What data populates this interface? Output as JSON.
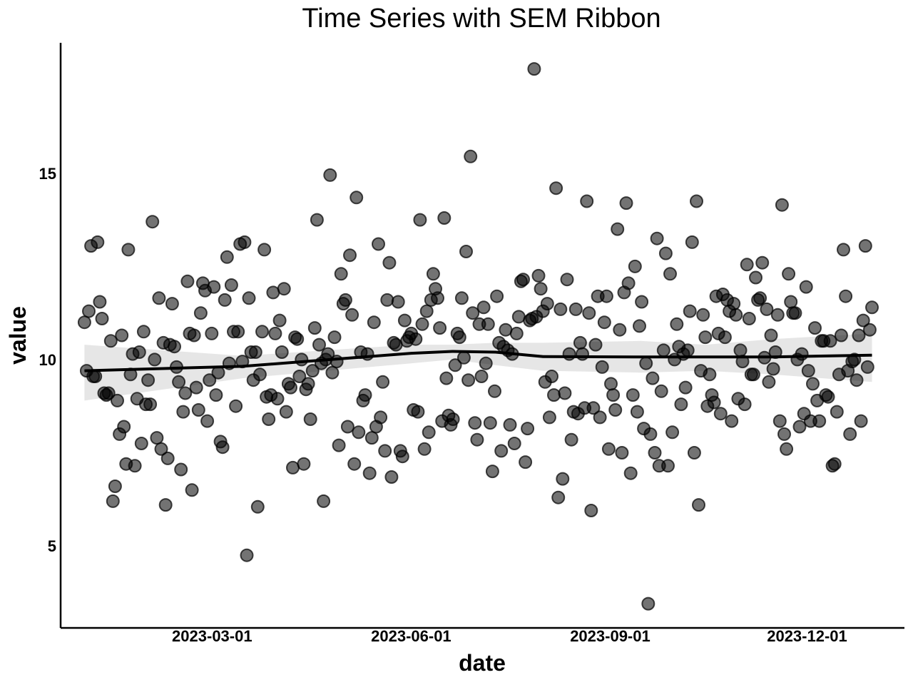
{
  "chart_data": {
    "type": "scatter",
    "title": "Time Series with SEM Ribbon",
    "xlabel": "date",
    "ylabel": "value",
    "x_range": [
      "2023-01-01",
      "2023-12-31"
    ],
    "xlim": [
      "2022-12-21",
      "2024-01-15"
    ],
    "ylim": [
      2.8,
      18.5
    ],
    "x_ticks": [
      "2023-03-01",
      "2023-06-01",
      "2023-09-01",
      "2023-12-01"
    ],
    "y_ticks": [
      5,
      10,
      15
    ],
    "grid": false,
    "point_color": "#000000",
    "point_opacity": 0.55,
    "line_color": "#000000",
    "ribbon_color": "#e6e6e6",
    "values": [
      11.0,
      9.7,
      11.3,
      13.05,
      9.55,
      9.55,
      13.15,
      11.55,
      11.1,
      9.1,
      9.05,
      9.1,
      10.5,
      6.2,
      6.6,
      8.9,
      8.0,
      10.65,
      8.2,
      7.2,
      12.95,
      9.6,
      10.15,
      7.15,
      8.95,
      10.2,
      7.75,
      10.75,
      8.8,
      9.45,
      8.8,
      13.7,
      10.0,
      7.9,
      11.65,
      7.6,
      10.45,
      6.1,
      7.35,
      10.4,
      11.5,
      10.35,
      9.8,
      9.4,
      7.05,
      8.6,
      9.1,
      12.1,
      10.7,
      6.5,
      10.65,
      9.25,
      8.65,
      11.25,
      12.05,
      11.85,
      8.35,
      9.45,
      10.7,
      11.95,
      9.05,
      9.65,
      7.8,
      7.65,
      11.6,
      12.75,
      9.9,
      12.0,
      10.75,
      8.75,
      10.75,
      13.1,
      9.95,
      13.15,
      4.75,
      11.65,
      10.2,
      9.45,
      10.2,
      6.05,
      9.6,
      10.75,
      12.95,
      9.0,
      8.4,
      9.05,
      11.8,
      10.7,
      8.95,
      11.05,
      10.2,
      11.9,
      8.6,
      9.35,
      9.25,
      7.1,
      10.6,
      10.55,
      9.55,
      10.0,
      7.2,
      9.2,
      9.35,
      8.4,
      9.7,
      10.85,
      13.75,
      10.4,
      9.9,
      6.2,
      10.0,
      10.15,
      14.95,
      9.65,
      10.6,
      9.95,
      7.7,
      12.3,
      11.5,
      11.6,
      8.2,
      12.8,
      11.2,
      7.2,
      14.35,
      8.05,
      10.2,
      8.9,
      9.05,
      10.15,
      6.95,
      7.9,
      11.0,
      8.2,
      13.1,
      8.45,
      9.4,
      7.55,
      11.6,
      12.6,
      6.85,
      10.45,
      10.4,
      11.55,
      7.55,
      7.4,
      11.05,
      10.5,
      10.6,
      10.7,
      8.65,
      10.55,
      8.6,
      13.75,
      10.95,
      7.6,
      11.3,
      8.05,
      11.6,
      12.3,
      11.9,
      11.65,
      10.85,
      8.35,
      13.8,
      9.5,
      8.5,
      8.25,
      8.4,
      9.85,
      10.7,
      10.6,
      11.65,
      10.05,
      12.9,
      9.45,
      15.45,
      11.25,
      8.3,
      7.85,
      10.95,
      9.55,
      11.4,
      9.9,
      10.95,
      8.3,
      7.0,
      9.15,
      11.7,
      10.45,
      7.55,
      10.35,
      10.8,
      10.25,
      8.25,
      10.15,
      7.75,
      10.7,
      11.15,
      12.1,
      12.15,
      7.25,
      8.15,
      11.05,
      11.1,
      17.8,
      11.15,
      12.25,
      11.9,
      11.3,
      9.4,
      11.5,
      8.45,
      9.55,
      9.05,
      14.6,
      6.3,
      11.35,
      6.8,
      9.1,
      12.15,
      10.15,
      7.85,
      8.6,
      11.35,
      8.55,
      10.45,
      10.15,
      8.7,
      14.25,
      11.25,
      5.95,
      8.7,
      10.4,
      11.7,
      8.45,
      9.8,
      11.0,
      11.7,
      7.6,
      9.35,
      9.05,
      8.65,
      13.5,
      10.8,
      7.5,
      11.8,
      14.2,
      12.05,
      6.95,
      9.05,
      12.5,
      8.6,
      10.9,
      11.55,
      8.15,
      9.9,
      3.45,
      8.0,
      9.5,
      7.5,
      13.25,
      7.15,
      9.15,
      10.25,
      12.85,
      7.15,
      12.3,
      8.05,
      10.0,
      10.95,
      10.35,
      8.8,
      10.15,
      9.25,
      10.25,
      11.3,
      13.15,
      7.5,
      14.25,
      6.1,
      9.7,
      11.2,
      10.6,
      8.75,
      9.6,
      9.05,
      8.85,
      11.7,
      10.7,
      8.55,
      11.75,
      10.6,
      11.6,
      11.3,
      8.35,
      11.5,
      11.2,
      8.95,
      10.25,
      9.95,
      8.8,
      12.55,
      11.1,
      9.6,
      9.6,
      12.2,
      11.6,
      11.65,
      12.6,
      10.05,
      11.35,
      9.4,
      10.65,
      9.75,
      10.2,
      11.2,
      8.35,
      14.15,
      8.0,
      7.6,
      12.3,
      11.55,
      11.25,
      11.25,
      10.0,
      8.2,
      10.15,
      8.55,
      11.95,
      9.7,
      8.35,
      9.35,
      10.85,
      8.9,
      8.35,
      10.5,
      10.5,
      9.05,
      9.0,
      10.5,
      7.15,
      7.2,
      8.6,
      9.6,
      10.65,
      12.95,
      11.7,
      9.7,
      8.0,
      9.95,
      10.0,
      9.45,
      10.65,
      8.35,
      11.05,
      13.05,
      9.8,
      10.8,
      11.4
    ],
    "trend": {
      "x": [
        "2023-01-01",
        "2023-03-15",
        "2023-06-01",
        "2023-06-20",
        "2023-07-10",
        "2023-08-01",
        "2023-09-15",
        "2023-10-15",
        "2023-11-15",
        "2023-12-31"
      ],
      "y": [
        9.7,
        9.82,
        10.17,
        10.22,
        10.2,
        10.08,
        10.07,
        10.07,
        10.07,
        10.12
      ],
      "upper": [
        10.4,
        10.1,
        10.4,
        10.4,
        10.45,
        10.45,
        10.5,
        10.4,
        10.55,
        10.7
      ],
      "lower": [
        8.9,
        9.5,
        9.9,
        10.0,
        9.85,
        9.7,
        9.65,
        9.7,
        9.6,
        9.4
      ]
    }
  }
}
